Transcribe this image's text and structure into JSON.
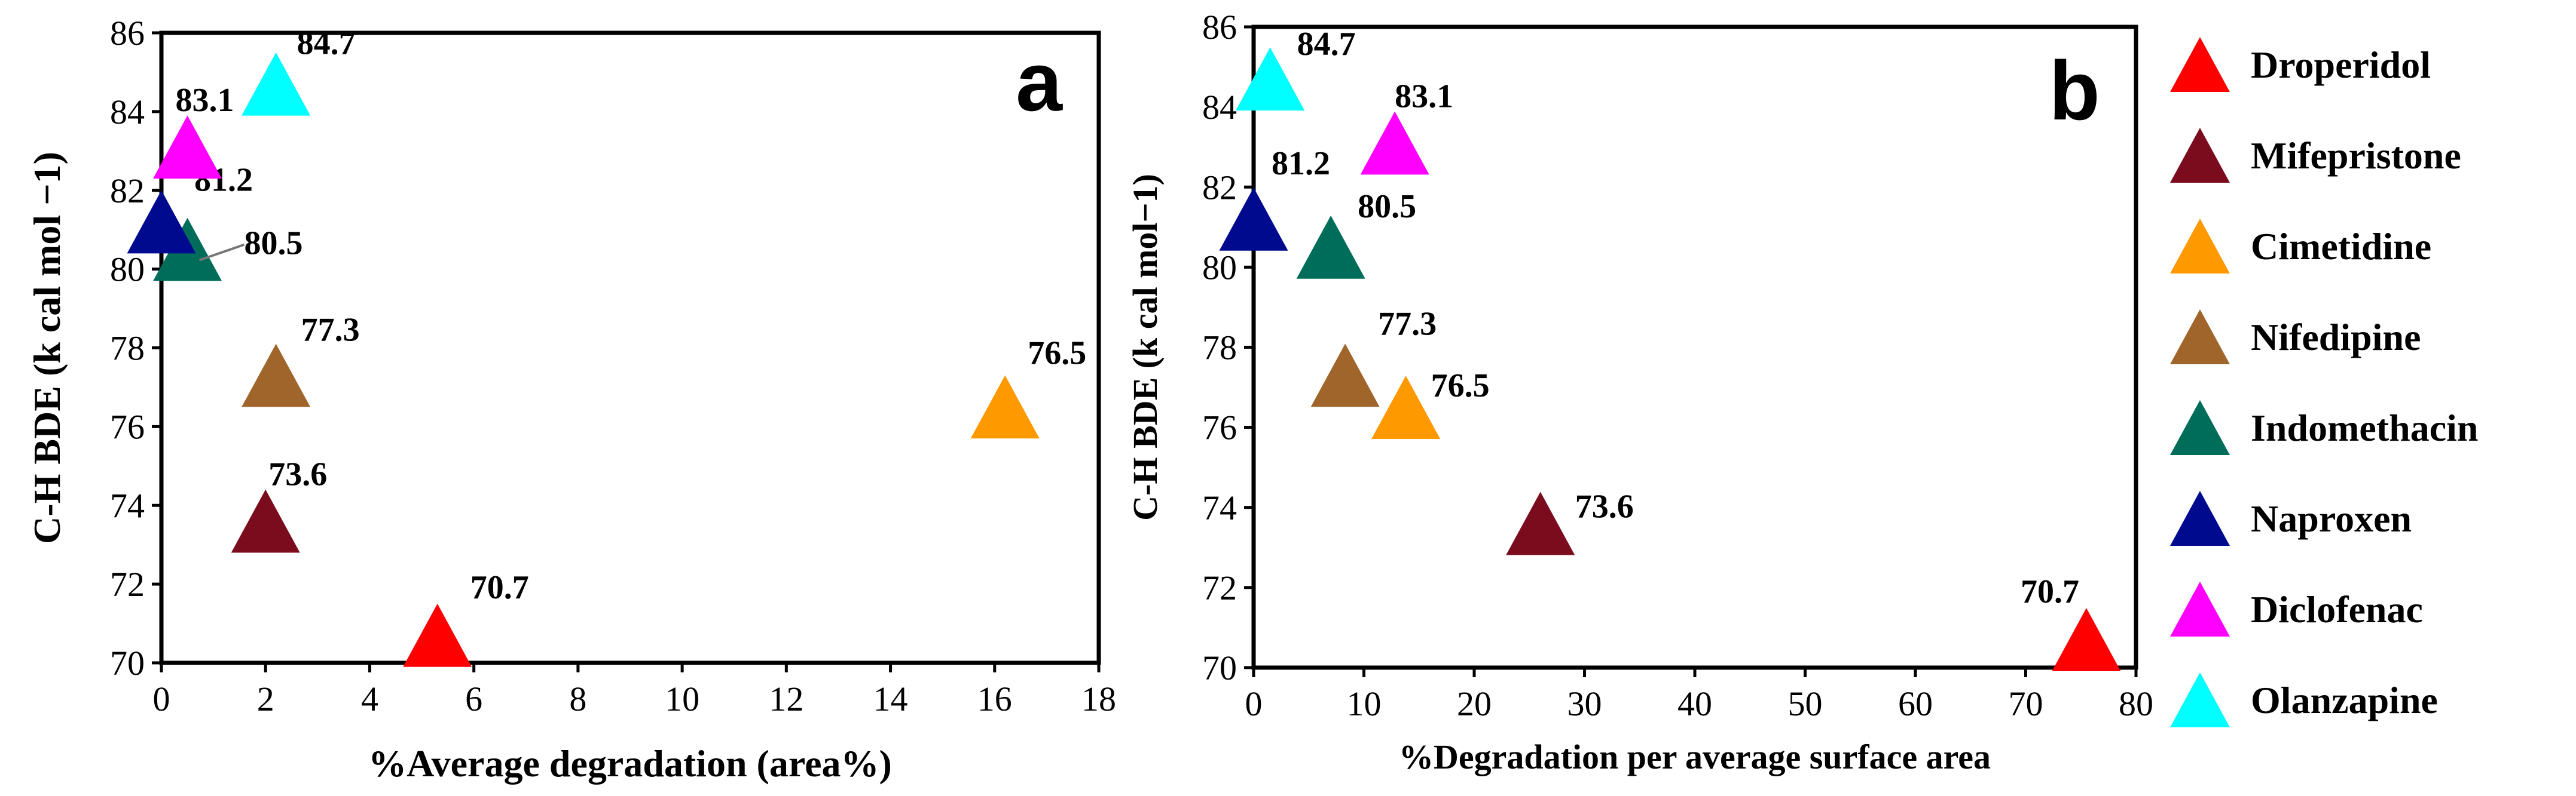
{
  "drugs": [
    {
      "name": "Droperidol",
      "color": "#ff0000"
    },
    {
      "name": "Mifepristone",
      "color": "#7b0c1e"
    },
    {
      "name": "Cimetidine",
      "color": "#ff9900"
    },
    {
      "name": "Nifedipine",
      "color": "#a0652b"
    },
    {
      "name": "Indomethacin",
      "color": "#006d5b"
    },
    {
      "name": "Naproxen",
      "color": "#000a8f"
    },
    {
      "name": "Diclofenac",
      "color": "#ff00ff"
    },
    {
      "name": "Olanzapine",
      "color": "#00ffff"
    }
  ],
  "chart_data": [
    {
      "type": "scatter",
      "panel": "a",
      "xlabel": "%Average degradation (area%)",
      "ylabel": "C-H BDE (k cal mol −1)",
      "xlim": [
        0,
        18
      ],
      "ylim": [
        70,
        86
      ],
      "xticks": [
        "0",
        "2",
        "4",
        "6",
        "8",
        "10",
        "12",
        "14",
        "16",
        "18"
      ],
      "yticks": [
        "70",
        "72",
        "74",
        "76",
        "78",
        "80",
        "82",
        "84",
        "86"
      ],
      "points": [
        {
          "drug": "Droperidol",
          "x": 5.3,
          "y": 70.7,
          "label": "70.7"
        },
        {
          "drug": "Mifepristone",
          "x": 2.0,
          "y": 73.6,
          "label": "73.6"
        },
        {
          "drug": "Cimetidine",
          "x": 16.2,
          "y": 76.5,
          "label": "76.5"
        },
        {
          "drug": "Nifedipine",
          "x": 2.2,
          "y": 77.3,
          "label": "77.3"
        },
        {
          "drug": "Indomethacin",
          "x": 0.5,
          "y": 80.5,
          "label": "80.5"
        },
        {
          "drug": "Naproxen",
          "x": 0.0,
          "y": 81.2,
          "label": "81.2"
        },
        {
          "drug": "Diclofenac",
          "x": 0.5,
          "y": 83.1,
          "label": "83.1"
        },
        {
          "drug": "Olanzapine",
          "x": 2.2,
          "y": 84.7,
          "label": "84.7"
        }
      ]
    },
    {
      "type": "scatter",
      "panel": "b",
      "xlabel": "%Degradation per average surface area",
      "ylabel": "C-H BDE (k cal mol−1)",
      "xlim": [
        0,
        80
      ],
      "ylim": [
        70,
        86
      ],
      "xticks": [
        "0",
        "10",
        "20",
        "30",
        "40",
        "50",
        "60",
        "70",
        "80"
      ],
      "yticks": [
        "70",
        "72",
        "74",
        "76",
        "78",
        "80",
        "82",
        "84",
        "86"
      ],
      "points": [
        {
          "drug": "Droperidol",
          "x": 75.5,
          "y": 70.7,
          "label": "70.7"
        },
        {
          "drug": "Mifepristone",
          "x": 26.0,
          "y": 73.6,
          "label": "73.6"
        },
        {
          "drug": "Cimetidine",
          "x": 13.8,
          "y": 76.5,
          "label": "76.5"
        },
        {
          "drug": "Nifedipine",
          "x": 8.3,
          "y": 77.3,
          "label": "77.3"
        },
        {
          "drug": "Indomethacin",
          "x": 7.0,
          "y": 80.5,
          "label": "80.5"
        },
        {
          "drug": "Naproxen",
          "x": 0.0,
          "y": 81.2,
          "label": "81.2"
        },
        {
          "drug": "Diclofenac",
          "x": 12.8,
          "y": 83.1,
          "label": "83.1"
        },
        {
          "drug": "Olanzapine",
          "x": 1.5,
          "y": 84.7,
          "label": "84.7"
        }
      ]
    }
  ]
}
